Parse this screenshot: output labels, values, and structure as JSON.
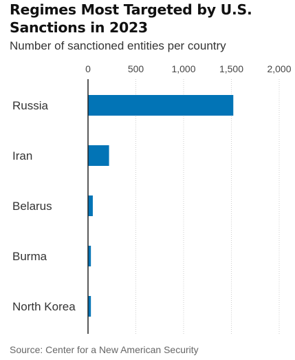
{
  "title": "Regimes Most Targeted by U.S. Sanctions in 2023",
  "subtitle": "Number of sanctioned entities per country",
  "source": "Source: Center for a New American Security",
  "colors": {
    "bar": "#0274b6",
    "grid": "#cccccc",
    "axis": "#222222"
  },
  "chart_data": {
    "type": "bar",
    "orientation": "horizontal",
    "categories": [
      "Russia",
      "Iran",
      "Belarus",
      "Burma",
      "North Korea"
    ],
    "values": [
      1520,
      220,
      50,
      30,
      30
    ],
    "xlim": [
      0,
      2000
    ],
    "xticks": [
      0,
      500,
      1000,
      1500,
      2000
    ],
    "xtick_labels": [
      "0",
      "500",
      "1,000",
      "1,500",
      "2,000"
    ],
    "xaxis_position": "top",
    "grid": true
  }
}
